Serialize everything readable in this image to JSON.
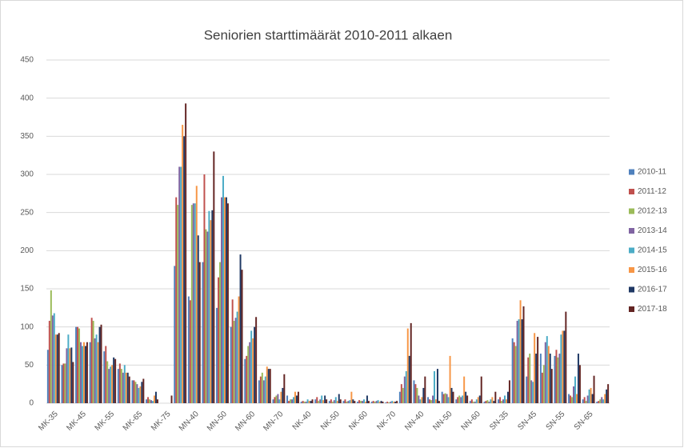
{
  "chart_data": {
    "type": "bar",
    "title": "Seniorien starttimäärät 2010-2011 alkaen",
    "categories": [
      "MK-35",
      null,
      "MK-45",
      null,
      "MK-55",
      null,
      "MK-65",
      null,
      "MK-75",
      null,
      "MN-40",
      null,
      "MN-50",
      null,
      "MN-60",
      null,
      "MN-70",
      null,
      "NK-40",
      null,
      "NK-50",
      null,
      "NK-60",
      null,
      "NK-70",
      null,
      "NN-40",
      null,
      "NN-50",
      null,
      "NN-60",
      null,
      "SN-35",
      null,
      "SN-45",
      null,
      "SN-55",
      null,
      "SN-65",
      null
    ],
    "series": [
      {
        "name": "2010-11",
        "color": "#4f81bd",
        "values": [
          70,
          50,
          100,
          80,
          68,
          45,
          30,
          5,
          0,
          180,
          140,
          185,
          125,
          100,
          58,
          30,
          5,
          10,
          2,
          5,
          3,
          3,
          2,
          2,
          1,
          15,
          30,
          8,
          15,
          5,
          3,
          2,
          5,
          85,
          35,
          65,
          62,
          12,
          5,
          2
        ]
      },
      {
        "name": "2011-12",
        "color": "#c0504d",
        "values": [
          108,
          52,
          100,
          112,
          75,
          52,
          30,
          8,
          0,
          270,
          135,
          300,
          165,
          136,
          62,
          35,
          8,
          3,
          3,
          8,
          5,
          5,
          4,
          3,
          2,
          25,
          25,
          5,
          12,
          8,
          5,
          3,
          8,
          80,
          60,
          40,
          70,
          10,
          8,
          3
        ]
      },
      {
        "name": "2012-13",
        "color": "#9bbb59",
        "values": [
          148,
          52,
          98,
          108,
          55,
          45,
          28,
          5,
          0,
          260,
          260,
          228,
          185,
          108,
          75,
          40,
          10,
          5,
          2,
          3,
          2,
          2,
          3,
          2,
          1,
          20,
          20,
          4,
          13,
          10,
          2,
          4,
          3,
          75,
          65,
          50,
          60,
          8,
          3,
          5
        ]
      },
      {
        "name": "2013-14",
        "color": "#8064a2",
        "values": [
          115,
          72,
          80,
          85,
          45,
          40,
          25,
          4,
          0,
          310,
          262,
          225,
          270,
          112,
          80,
          30,
          12,
          5,
          2,
          5,
          4,
          3,
          3,
          3,
          2,
          35,
          10,
          10,
          12,
          8,
          2,
          2,
          5,
          108,
          30,
          80,
          65,
          22,
          10,
          8
        ]
      },
      {
        "name": "2014-15",
        "color": "#4bacc6",
        "values": [
          118,
          90,
          75,
          90,
          48,
          50,
          20,
          3,
          0,
          310,
          262,
          252,
          298,
          120,
          95,
          35,
          5,
          8,
          5,
          10,
          8,
          4,
          5,
          4,
          3,
          42,
          5,
          42,
          8,
          10,
          5,
          5,
          10,
          110,
          28,
          88,
          90,
          35,
          18,
          5
        ]
      },
      {
        "name": "2015-16",
        "color": "#f79646",
        "values": [
          90,
          72,
          80,
          80,
          50,
          40,
          22,
          10,
          0,
          365,
          285,
          240,
          270,
          140,
          85,
          48,
          15,
          15,
          3,
          4,
          3,
          15,
          2,
          2,
          2,
          98,
          8,
          5,
          62,
          35,
          8,
          8,
          5,
          135,
          92,
          75,
          95,
          12,
          20,
          12
        ]
      },
      {
        "name": "2016-17",
        "color": "#1f3864",
        "values": [
          90,
          73,
          75,
          100,
          60,
          40,
          28,
          15,
          0,
          350,
          220,
          253,
          270,
          195,
          100,
          45,
          20,
          10,
          3,
          10,
          12,
          5,
          10,
          3,
          2,
          62,
          20,
          45,
          20,
          15,
          10,
          3,
          15,
          110,
          65,
          65,
          95,
          65,
          12,
          18
        ]
      },
      {
        "name": "2017-18",
        "color": "#632523",
        "values": [
          92,
          54,
          80,
          103,
          58,
          35,
          32,
          5,
          10,
          393,
          185,
          330,
          262,
          175,
          113,
          45,
          38,
          15,
          5,
          5,
          5,
          3,
          3,
          2,
          3,
          105,
          35,
          3,
          15,
          10,
          35,
          15,
          30,
          127,
          87,
          45,
          120,
          50,
          36,
          25
        ]
      }
    ],
    "ylim": [
      0,
      450
    ],
    "yticks": [
      0,
      50,
      100,
      150,
      200,
      250,
      300,
      350,
      400,
      450
    ],
    "grid": true,
    "legend": "right"
  }
}
